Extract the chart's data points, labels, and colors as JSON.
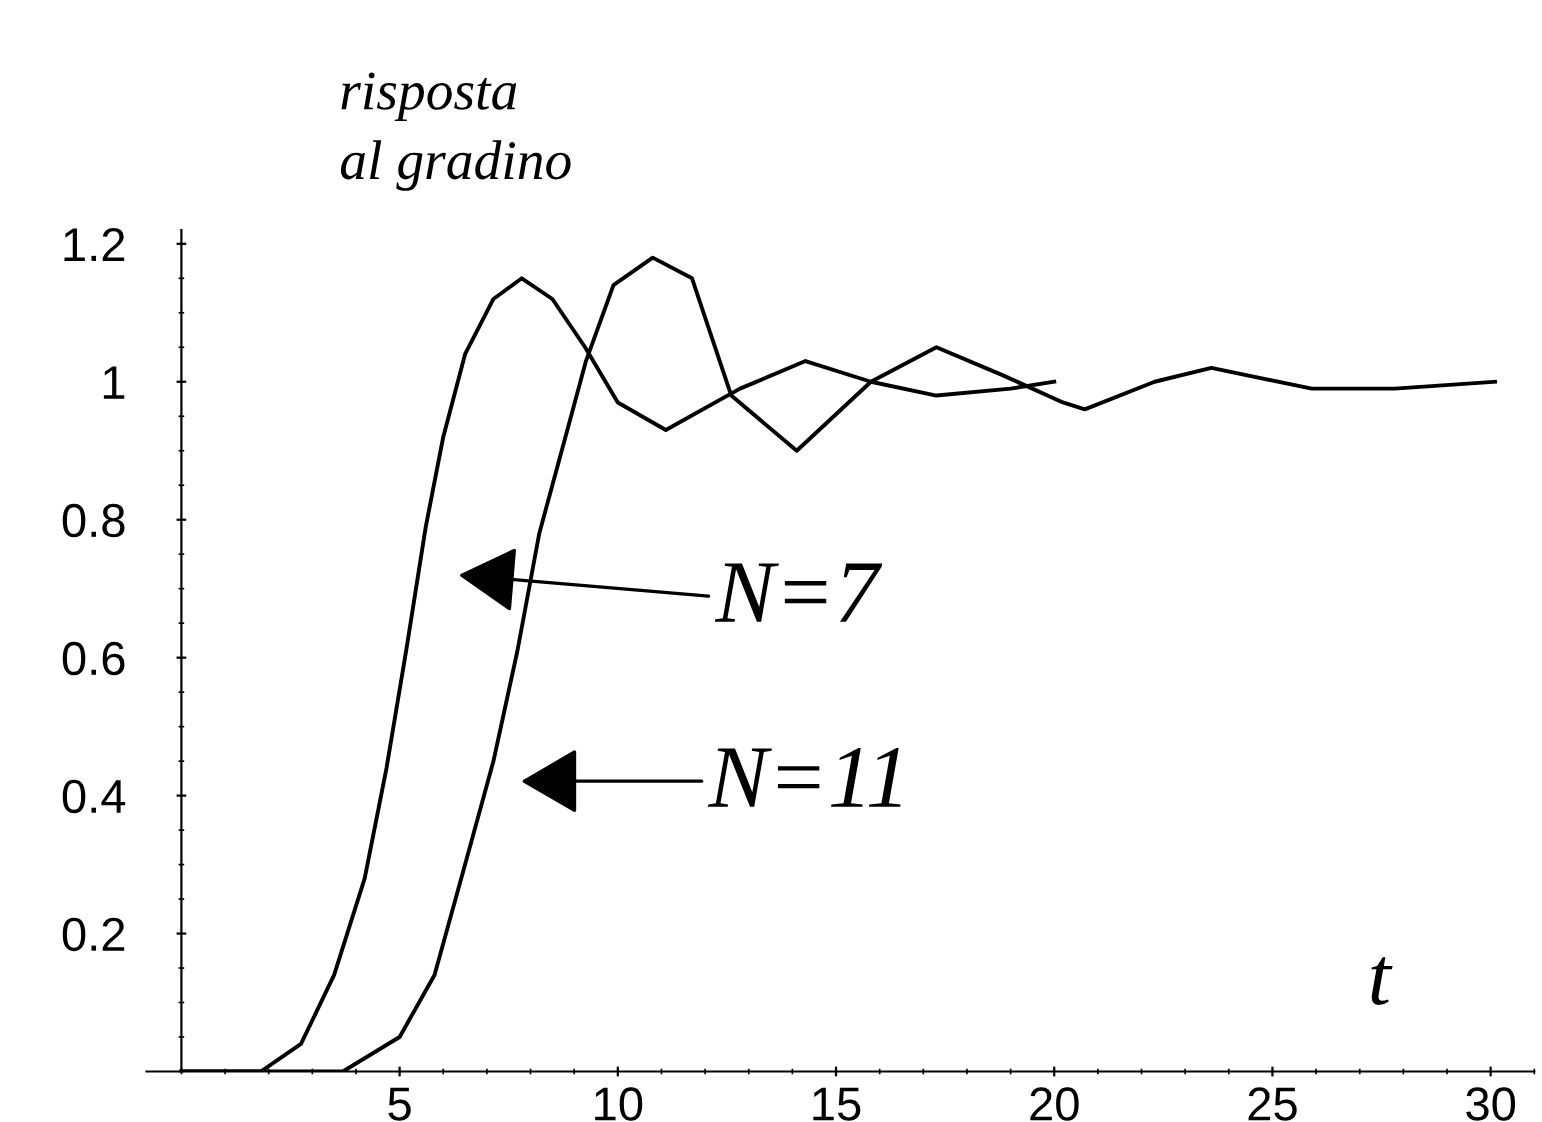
{
  "chart_data": {
    "type": "line",
    "ylabel": "risposta\nal gradino",
    "xlabel": "t",
    "series": [
      {
        "color": "#000000",
        "x": [
          0,
          1.82,
          2.74,
          3.5,
          4.2,
          4.7,
          5.15,
          5.6,
          6.0,
          6.5,
          7.15,
          7.8,
          8.5,
          9.25,
          10.0,
          11.1,
          12.8,
          14.3,
          15.8,
          17.3,
          19.0,
          20.0
        ],
        "values": [
          0,
          0,
          0.04,
          0.14,
          0.28,
          0.44,
          0.61,
          0.79,
          0.92,
          1.04,
          1.12,
          1.15,
          1.12,
          1.05,
          0.97,
          0.93,
          0.99,
          1.03,
          1.0,
          0.98,
          0.99,
          1.0
        ]
      },
      {
        "color": "#000000",
        "x": [
          0,
          3.7,
          5.0,
          5.8,
          6.5,
          7.15,
          7.7,
          8.2,
          8.8,
          9.27,
          9.9,
          10.8,
          11.7,
          12.6,
          14.1,
          15.8,
          17.3,
          18.8,
          20.2,
          20.7,
          22.3,
          23.6,
          25.9,
          26.9,
          27.8,
          30.1
        ],
        "values": [
          0,
          0,
          0.05,
          0.14,
          0.3,
          0.45,
          0.61,
          0.78,
          0.92,
          1.03,
          1.14,
          1.18,
          1.15,
          0.98,
          0.9,
          1.0,
          1.05,
          1.01,
          0.97,
          0.96,
          1.0,
          1.02,
          0.99,
          0.99,
          0.99,
          1.0
        ]
      }
    ],
    "annotations": [
      "N=7",
      "N=11"
    ],
    "xlim": [
      -0.8,
      31
    ],
    "ylim": [
      0,
      1.22
    ],
    "xticks": [
      5,
      10,
      15,
      20,
      25,
      30
    ],
    "yticks": [
      0.2,
      0.4,
      0.6,
      0.8,
      1,
      1.2
    ],
    "grid": false,
    "legend": false,
    "marker": "none",
    "line_style": "solid"
  }
}
